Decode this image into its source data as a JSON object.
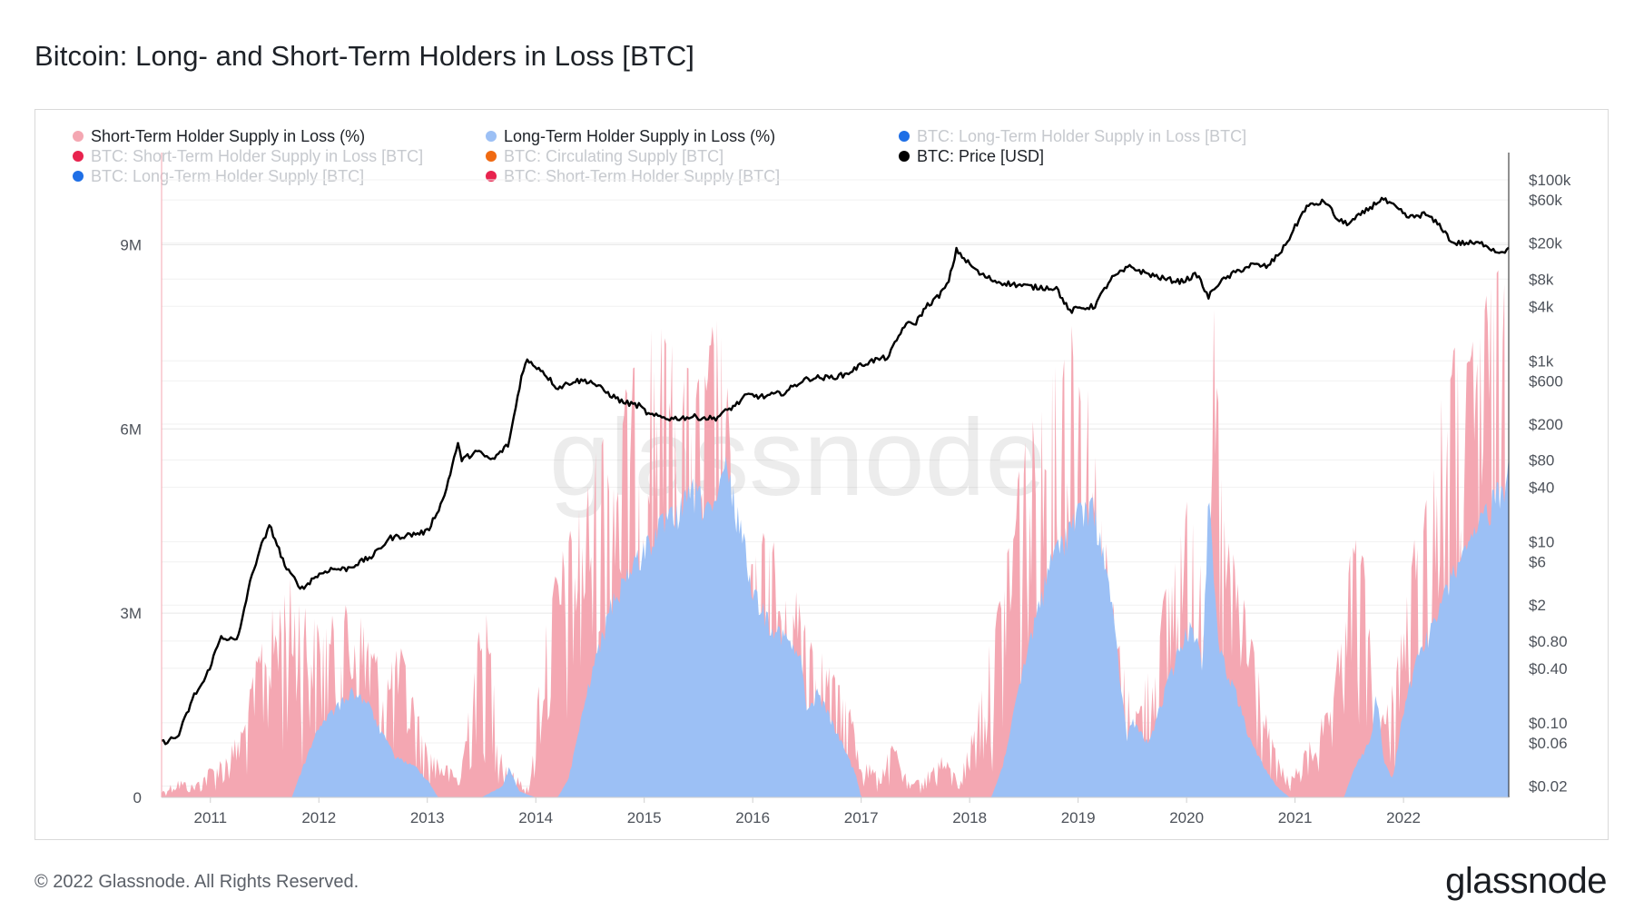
{
  "title": "Bitcoin: Long- and Short-Term Holders in Loss [BTC]",
  "footer": "© 2022 Glassnode. All Rights Reserved.",
  "logo": "glassnode",
  "watermark": "glassnode",
  "colors": {
    "sth": "#f4a7b2",
    "lth": "#9cc0f5",
    "price": "#000000",
    "legend_blue": "#1f6fe6",
    "legend_red": "#e8234e",
    "legend_orange": "#f06a12"
  },
  "legend": [
    {
      "label": "Short-Term Holder Supply in Loss (%)",
      "color": "#f4a7b2",
      "active": true
    },
    {
      "label": "Long-Term Holder Supply in Loss (%)",
      "color": "#9cc0f5",
      "active": true
    },
    {
      "label": "BTC: Long-Term Holder Supply in Loss [BTC]",
      "color": "#1f6fe6",
      "active": false
    },
    {
      "label": "BTC: Short-Term Holder Supply in Loss [BTC]",
      "color": "#e8234e",
      "active": false
    },
    {
      "label": "BTC: Circulating Supply [BTC]",
      "color": "#f06a12",
      "active": false
    },
    {
      "label": "BTC: Price [USD]",
      "color": "#000000",
      "active": true
    },
    {
      "label": "BTC: Long-Term Holder Supply [BTC]",
      "color": "#1f6fe6",
      "active": false
    },
    {
      "label": "BTC: Short-Term Holder Supply [BTC]",
      "color": "#e8234e",
      "active": false
    }
  ],
  "chart_data": {
    "type": "area",
    "title": "Bitcoin: Long- and Short-Term Holders in Loss [BTC]",
    "x_range": [
      2010.55,
      2022.97
    ],
    "y_left": {
      "range": [
        0,
        10500000
      ],
      "ticks": [
        0,
        3000000,
        6000000,
        9000000
      ],
      "tick_labels": [
        "0",
        "3M",
        "6M",
        "9M"
      ]
    },
    "y_right": {
      "scale": "log",
      "range": [
        0.015,
        200000
      ],
      "ticks": [
        100000,
        60000,
        20000,
        8000,
        4000,
        1000,
        600,
        200,
        80,
        40,
        10,
        6,
        2,
        0.8,
        0.4,
        0.1,
        0.06,
        0.02
      ],
      "tick_labels": [
        "$100k",
        "$60k",
        "$20k",
        "$8k",
        "$4k",
        "$1k",
        "$600",
        "$200",
        "$80",
        "$40",
        "$10",
        "$6",
        "$2",
        "$0.80",
        "$0.40",
        "$0.10",
        "$0.06",
        "$0.02"
      ]
    },
    "x_ticks": [
      2011,
      2012,
      2013,
      2014,
      2015,
      2016,
      2017,
      2018,
      2019,
      2020,
      2021,
      2022
    ],
    "x_tick_labels": [
      "2011",
      "2012",
      "2013",
      "2014",
      "2015",
      "2016",
      "2017",
      "2018",
      "2019",
      "2020",
      "2021",
      "2022"
    ],
    "grid": true,
    "legend_position": "top-left",
    "series": [
      {
        "name": "Short-Term Holder Supply in Loss (%)",
        "axis": "left",
        "color": "#f4a7b2",
        "x": [
          2010.55,
          2010.7,
          2010.85,
          2011.0,
          2011.15,
          2011.3,
          2011.45,
          2011.6,
          2011.75,
          2011.9,
          2012.0,
          2012.15,
          2012.3,
          2012.45,
          2012.6,
          2012.75,
          2012.9,
          2013.0,
          2013.15,
          2013.3,
          2013.45,
          2013.55,
          2013.7,
          2013.85,
          2013.95,
          2014.05,
          2014.2,
          2014.35,
          2014.5,
          2014.6,
          2014.75,
          2014.9,
          2015.0,
          2015.1,
          2015.25,
          2015.4,
          2015.55,
          2015.65,
          2015.75,
          2015.85,
          2016.0,
          2016.15,
          2016.3,
          2016.45,
          2016.6,
          2016.75,
          2016.9,
          2017.0,
          2017.15,
          2017.3,
          2017.45,
          2017.6,
          2017.75,
          2017.9,
          2018.0,
          2018.15,
          2018.3,
          2018.45,
          2018.6,
          2018.75,
          2018.85,
          2018.95,
          2019.05,
          2019.15,
          2019.3,
          2019.45,
          2019.55,
          2019.7,
          2019.85,
          2020.0,
          2020.1,
          2020.2,
          2020.25,
          2020.35,
          2020.5,
          2020.6,
          2020.75,
          2020.85,
          2020.95,
          2021.05,
          2021.2,
          2021.35,
          2021.45,
          2021.55,
          2021.65,
          2021.75,
          2021.85,
          2022.0,
          2022.1,
          2022.25,
          2022.35,
          2022.45,
          2022.55,
          2022.7,
          2022.85,
          2022.97
        ],
        "y": [
          100000,
          300000,
          200000,
          500000,
          700000,
          1200000,
          2500000,
          3200000,
          3600000,
          3100000,
          2800000,
          3000000,
          3200000,
          2800000,
          2000000,
          2500000,
          1500000,
          800000,
          600000,
          300000,
          2600000,
          3000000,
          600000,
          300000,
          200000,
          2500000,
          3800000,
          4500000,
          5200000,
          6000000,
          6300000,
          7000000,
          7600000,
          7800000,
          7400000,
          7000000,
          6800000,
          8000000,
          7200000,
          4000000,
          3800000,
          4600000,
          3200000,
          3500000,
          2500000,
          2000000,
          1500000,
          700000,
          400000,
          900000,
          200000,
          400000,
          700000,
          300000,
          900000,
          2200000,
          3500000,
          5600000,
          6200000,
          6800000,
          7600000,
          8000000,
          7500000,
          5800000,
          3500000,
          1800000,
          1500000,
          2500000,
          3800000,
          4800000,
          5500000,
          3500000,
          8000000,
          4500000,
          3500000,
          2800000,
          1200000,
          600000,
          300000,
          600000,
          1200000,
          1500000,
          3500000,
          4300000,
          3800000,
          1200000,
          1500000,
          3000000,
          4200000,
          5200000,
          6500000,
          7500000,
          6800000,
          8000000,
          8500000,
          9000000
        ]
      },
      {
        "name": "Long-Term Holder Supply in Loss (%)",
        "axis": "left",
        "color": "#9cc0f5",
        "x": [
          2010.55,
          2011.0,
          2011.5,
          2011.75,
          2011.85,
          2012.0,
          2012.15,
          2012.3,
          2012.45,
          2012.55,
          2012.7,
          2012.9,
          2013.0,
          2013.1,
          2013.5,
          2013.7,
          2013.75,
          2013.85,
          2014.0,
          2014.2,
          2014.3,
          2014.5,
          2014.7,
          2014.85,
          2015.0,
          2015.15,
          2015.3,
          2015.45,
          2015.55,
          2015.65,
          2015.75,
          2015.9,
          2016.0,
          2016.15,
          2016.3,
          2016.45,
          2016.5,
          2016.6,
          2016.75,
          2016.85,
          2016.95,
          2017.0,
          2018.2,
          2018.3,
          2018.45,
          2018.6,
          2018.75,
          2018.9,
          2019.0,
          2019.15,
          2019.3,
          2019.45,
          2019.5,
          2019.65,
          2019.8,
          2019.95,
          2020.05,
          2020.15,
          2020.2,
          2020.3,
          2020.45,
          2020.6,
          2020.75,
          2020.85,
          2020.95,
          2021.45,
          2021.55,
          2021.7,
          2021.75,
          2021.82,
          2021.9,
          2022.0,
          2022.15,
          2022.3,
          2022.45,
          2022.6,
          2022.75,
          2022.9,
          2022.97
        ],
        "y": [
          0,
          0,
          0,
          0,
          500000,
          1200000,
          1500000,
          1800000,
          1600000,
          1200000,
          700000,
          500000,
          300000,
          0,
          0,
          200000,
          500000,
          100000,
          0,
          0,
          300000,
          2000000,
          3300000,
          3800000,
          4200000,
          4600000,
          4800000,
          5200000,
          5000000,
          4800000,
          5600000,
          4500000,
          3500000,
          3000000,
          2700000,
          2300000,
          1400000,
          1800000,
          1200000,
          800000,
          400000,
          0,
          0,
          500000,
          1800000,
          3000000,
          4000000,
          4500000,
          4800000,
          4900000,
          3400000,
          1000000,
          1300000,
          900000,
          1800000,
          2600000,
          3000000,
          2200000,
          5200000,
          2500000,
          1800000,
          900000,
          400000,
          150000,
          0,
          0,
          500000,
          1000000,
          1800000,
          600000,
          300000,
          1500000,
          2500000,
          3000000,
          3800000,
          4200000,
          4800000,
          5300000,
          5600000
        ]
      },
      {
        "name": "BTC: Price [USD]",
        "axis": "right",
        "color": "#000000",
        "x": [
          2010.55,
          2010.7,
          2010.85,
          2010.95,
          2011.1,
          2011.25,
          2011.35,
          2011.45,
          2011.55,
          2011.7,
          2011.85,
          2011.95,
          2012.1,
          2012.25,
          2012.5,
          2012.65,
          2012.85,
          2013.0,
          2013.15,
          2013.28,
          2013.32,
          2013.45,
          2013.6,
          2013.75,
          2013.88,
          2013.92,
          2014.05,
          2014.2,
          2014.35,
          2014.5,
          2014.65,
          2014.8,
          2014.95,
          2015.05,
          2015.25,
          2015.45,
          2015.65,
          2015.85,
          2015.95,
          2016.1,
          2016.3,
          2016.45,
          2016.55,
          2016.7,
          2016.85,
          2017.0,
          2017.1,
          2017.25,
          2017.4,
          2017.5,
          2017.6,
          2017.7,
          2017.8,
          2017.88,
          2017.96,
          2018.1,
          2018.25,
          2018.4,
          2018.6,
          2018.8,
          2018.92,
          2019.0,
          2019.15,
          2019.3,
          2019.48,
          2019.6,
          2019.8,
          2019.95,
          2020.1,
          2020.2,
          2020.28,
          2020.45,
          2020.6,
          2020.75,
          2020.9,
          2021.0,
          2021.1,
          2021.28,
          2021.4,
          2021.5,
          2021.65,
          2021.8,
          2021.92,
          2022.05,
          2022.2,
          2022.35,
          2022.45,
          2022.6,
          2022.75,
          2022.86,
          2022.97
        ],
        "y": [
          0.06,
          0.07,
          0.2,
          0.3,
          0.9,
          0.8,
          3,
          8,
          15,
          5,
          3,
          4,
          5,
          5,
          7,
          11,
          12,
          13,
          30,
          120,
          80,
          100,
          80,
          120,
          800,
          1000,
          800,
          500,
          600,
          600,
          450,
          350,
          320,
          250,
          230,
          240,
          230,
          330,
          420,
          400,
          450,
          600,
          650,
          650,
          700,
          900,
          1000,
          1100,
          2500,
          2600,
          4000,
          5000,
          7000,
          17000,
          13000,
          9000,
          7500,
          7000,
          6500,
          6400,
          3500,
          3800,
          4000,
          8000,
          11000,
          9500,
          8000,
          7500,
          9000,
          5000,
          7000,
          9500,
          11500,
          11000,
          18000,
          30000,
          50000,
          58000,
          35000,
          33000,
          45000,
          62000,
          50000,
          38000,
          42000,
          30000,
          20000,
          20000,
          19500,
          16000,
          16800
        ]
      }
    ]
  }
}
